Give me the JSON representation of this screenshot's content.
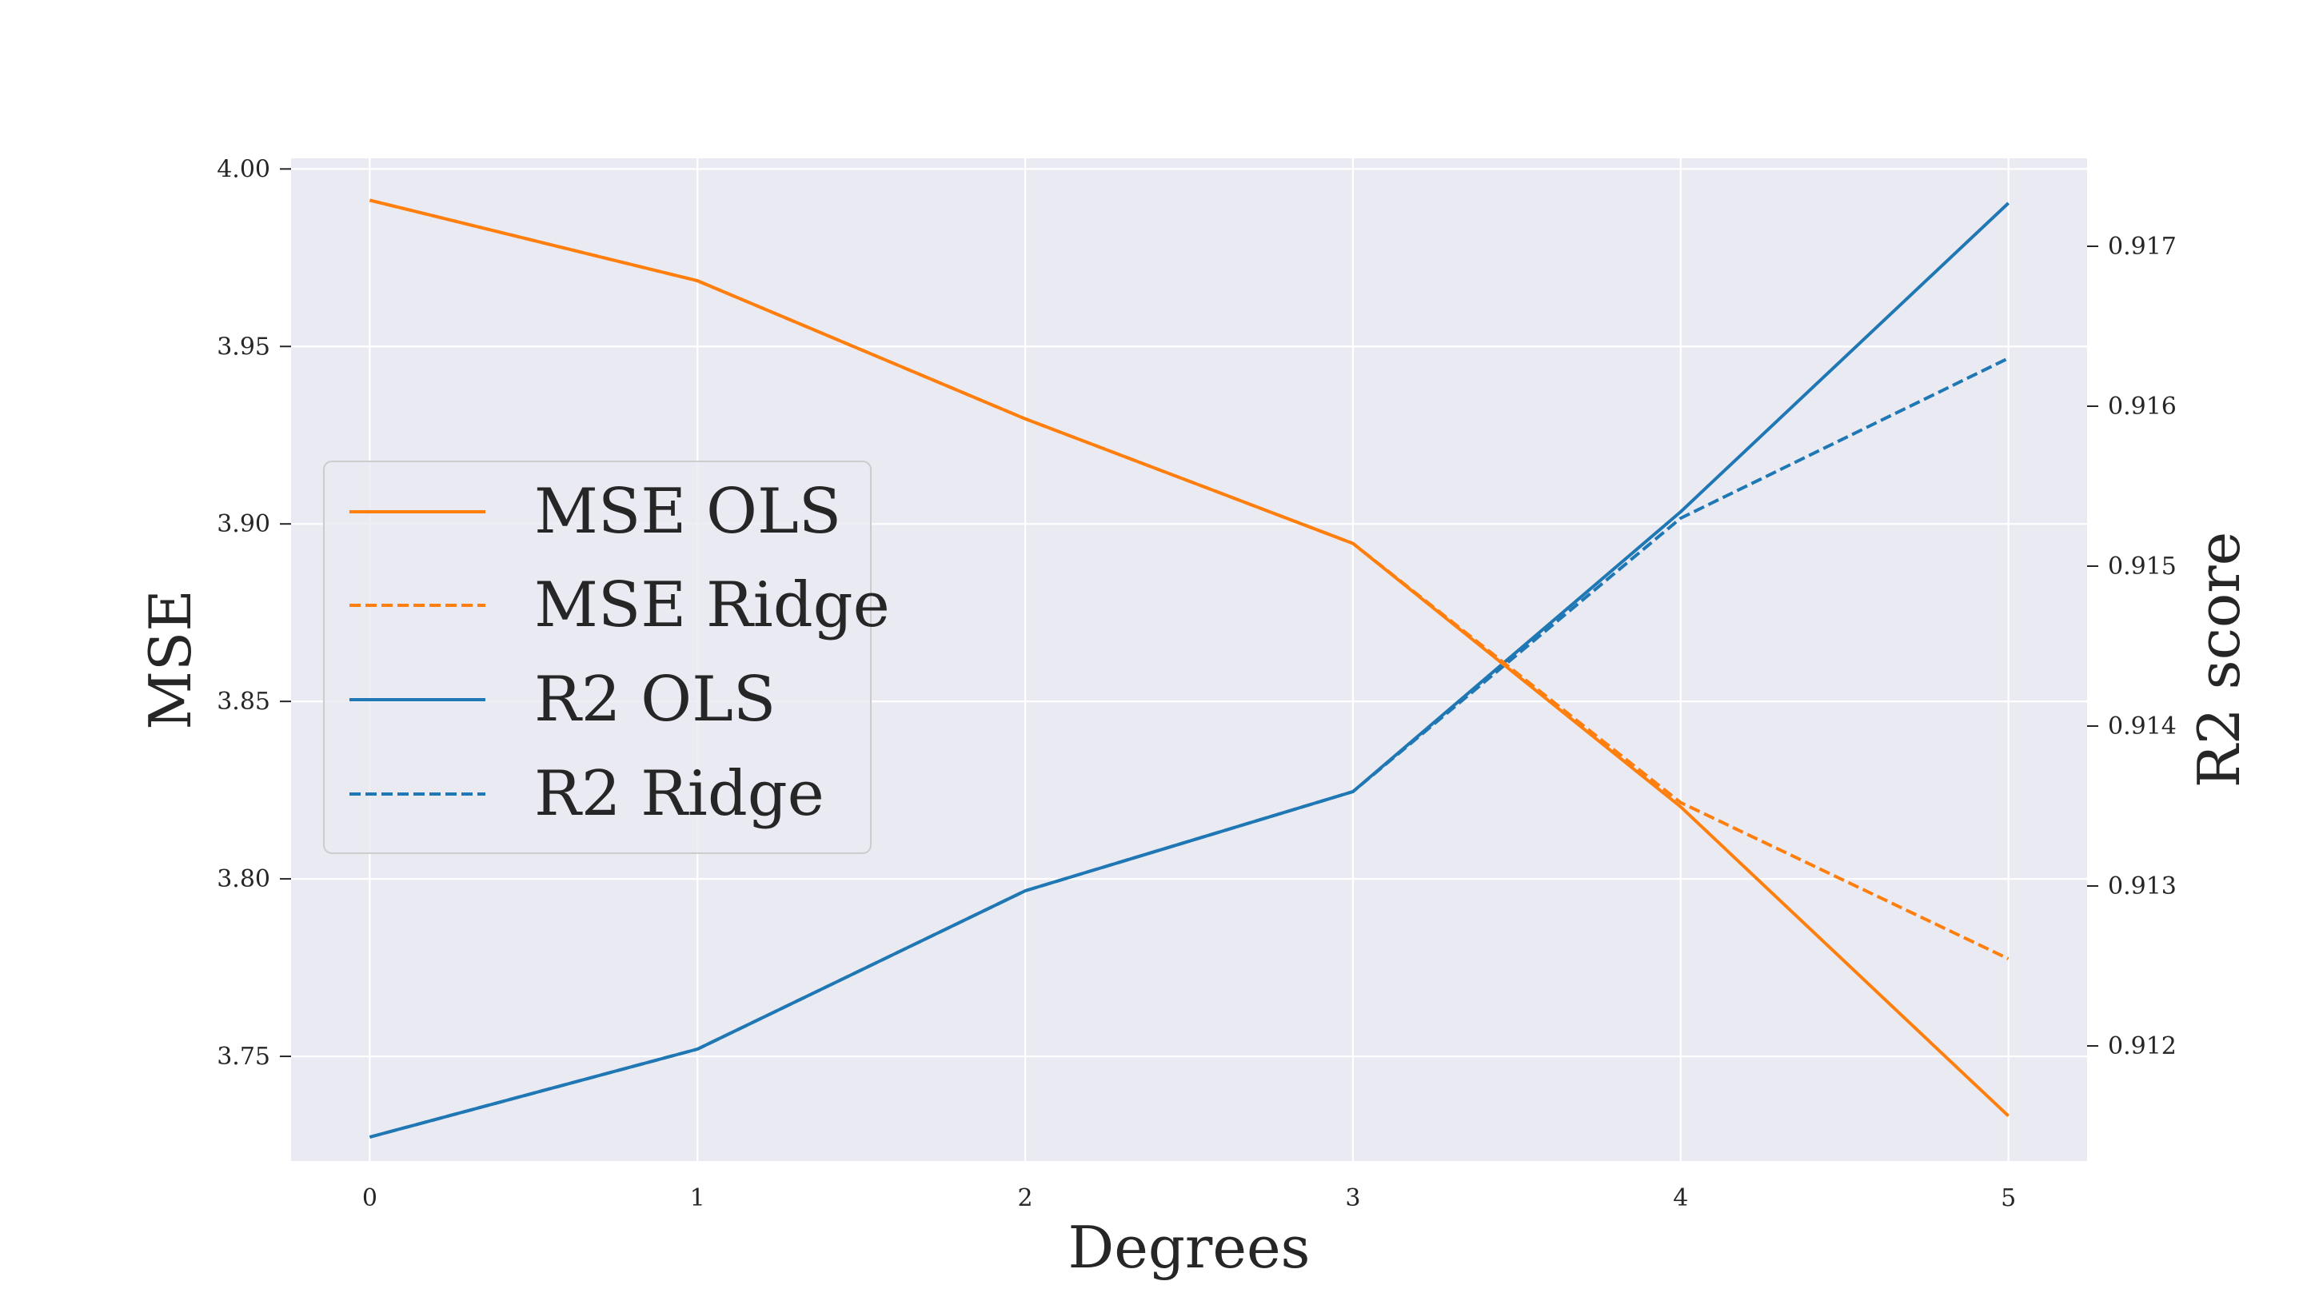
{
  "chart_data": {
    "type": "line",
    "title": "",
    "xlabel": "Degrees",
    "ylabel": "MSE",
    "y2label": "R2 score",
    "x": [
      0,
      1,
      2,
      3,
      4,
      5
    ],
    "x_ticks": [
      "0",
      "1",
      "2",
      "3",
      "4",
      "5"
    ],
    "xlim": [
      -0.24,
      5.24
    ],
    "ylim": [
      3.7205,
      4.003
    ],
    "y_ticks": [
      "3.75",
      "3.80",
      "3.85",
      "3.90",
      "3.95",
      "4.00"
    ],
    "y2lim": [
      0.91128,
      0.91755
    ],
    "y2_ticks": [
      "0.912",
      "0.913",
      "0.914",
      "0.915",
      "0.916",
      "0.917"
    ],
    "grid": true,
    "legend_position": "center-left",
    "series": [
      {
        "name": "MSE OLS",
        "axis": "left",
        "color": "#ff7f0e",
        "style": "solid",
        "values": [
          3.9912,
          3.9685,
          3.9296,
          3.8945,
          3.8203,
          3.7332
        ]
      },
      {
        "name": "MSE Ridge",
        "axis": "left",
        "color": "#ff7f0e",
        "style": "dashed",
        "values": [
          3.9912,
          3.9685,
          3.9296,
          3.8945,
          3.8215,
          3.7775
        ]
      },
      {
        "name": "R2 OLS",
        "axis": "right",
        "color": "#1f77b4",
        "style": "solid",
        "values": [
          0.91143,
          0.91198,
          0.91297,
          0.91359,
          0.91534,
          0.91727
        ]
      },
      {
        "name": "R2 Ridge",
        "axis": "right",
        "color": "#1f77b4",
        "style": "dashed",
        "values": [
          0.91143,
          0.91198,
          0.91297,
          0.91359,
          0.9153,
          0.9163
        ]
      }
    ]
  }
}
